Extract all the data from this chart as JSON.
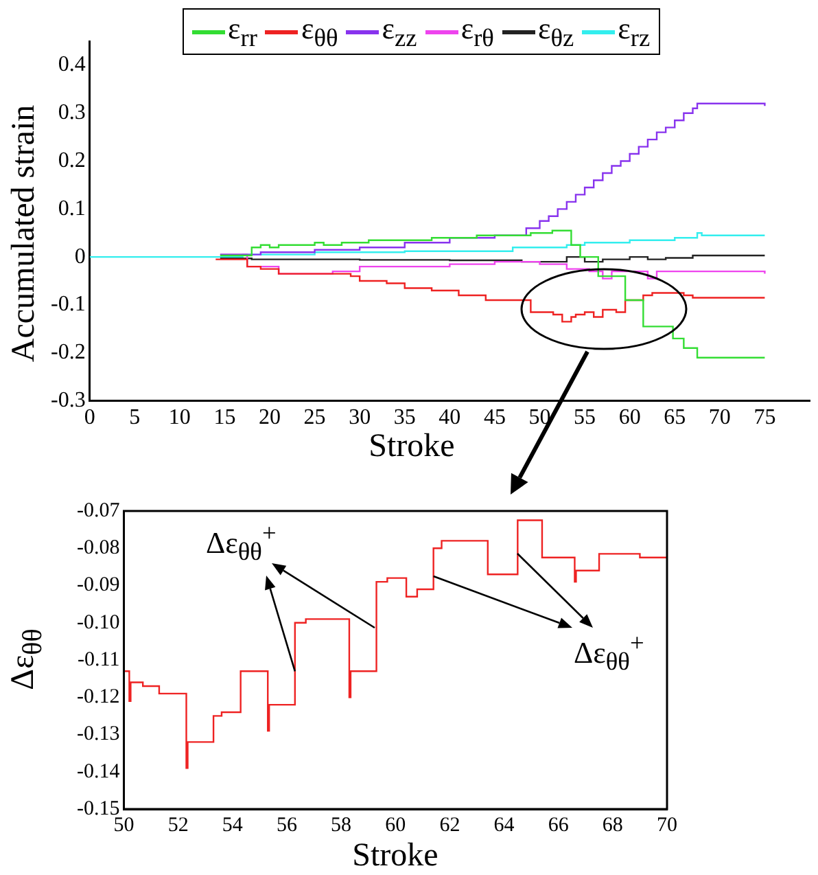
{
  "chart_data": [
    {
      "type": "step",
      "xlabel": "Stroke",
      "ylabel": "Accumulated strain",
      "xlim": [
        0,
        80
      ],
      "xticks": [
        0,
        5,
        10,
        15,
        20,
        25,
        30,
        35,
        40,
        45,
        50,
        55,
        60,
        65,
        70,
        75
      ],
      "ylim": [
        -0.3,
        0.45
      ],
      "yticks": [
        -0.3,
        -0.2,
        -0.1,
        0,
        0.1,
        0.2,
        0.3,
        0.4
      ],
      "legend": "top",
      "series": [
        {
          "name": "ε$_{rr}$",
          "color": "#33dd33",
          "x": [
            14.5,
            18,
            19,
            20,
            21,
            22,
            25,
            26,
            28,
            31,
            38,
            43,
            49,
            51.4,
            53.5,
            54.5,
            56.5,
            59.5,
            61.5,
            64.8,
            66,
            67.5,
            75
          ],
          "values": [
            0.003,
            0.02,
            0.025,
            0.02,
            0.025,
            0.025,
            0.03,
            0.025,
            0.03,
            0.035,
            0.04,
            0.045,
            0.05,
            0.055,
            0.025,
            0,
            -0.04,
            -0.09,
            -0.145,
            -0.17,
            -0.19,
            -0.21,
            -0.21
          ]
        },
        {
          "name": "ε$_{θθ}$",
          "color": "#ee2222",
          "x": [
            14,
            17.5,
            19,
            21,
            29,
            30,
            33,
            35,
            38,
            41,
            44,
            49,
            51.5,
            52.5,
            53.5,
            54,
            55,
            56,
            57,
            58.5,
            59.5,
            61.5,
            62.5,
            64.5,
            66,
            67,
            75
          ],
          "values": [
            -0.005,
            -0.02,
            -0.025,
            -0.035,
            -0.04,
            -0.05,
            -0.055,
            -0.065,
            -0.07,
            -0.08,
            -0.09,
            -0.115,
            -0.12,
            -0.135,
            -0.125,
            -0.12,
            -0.115,
            -0.125,
            -0.11,
            -0.115,
            -0.09,
            -0.08,
            -0.075,
            -0.075,
            -0.08,
            -0.085,
            -0.085
          ]
        },
        {
          "name": "ε$_{zz}$",
          "color": "#8833ee",
          "x": [
            14.5,
            19,
            25,
            30,
            35,
            40,
            45,
            48.5,
            50,
            51,
            52,
            53,
            54,
            55,
            56,
            57,
            58,
            59,
            60,
            61,
            62,
            63,
            64,
            65,
            66,
            67,
            67.5,
            75
          ],
          "values": [
            0.005,
            0.01,
            0.015,
            0.02,
            0.03,
            0.04,
            0.045,
            0.06,
            0.075,
            0.085,
            0.1,
            0.115,
            0.13,
            0.145,
            0.16,
            0.175,
            0.19,
            0.2,
            0.215,
            0.23,
            0.245,
            0.26,
            0.27,
            0.285,
            0.3,
            0.31,
            0.32,
            0.315
          ]
        },
        {
          "name": "ε$_{rθ}$",
          "color": "#ee44ee",
          "x": [
            14.5,
            17.5,
            21,
            27,
            30,
            40,
            45,
            50,
            53,
            55.5,
            57,
            58,
            62,
            63,
            75
          ],
          "values": [
            0.005,
            -0.02,
            -0.035,
            -0.03,
            -0.02,
            -0.015,
            -0.01,
            -0.015,
            -0.025,
            -0.03,
            -0.045,
            -0.03,
            -0.045,
            -0.03,
            -0.035
          ]
        },
        {
          "name": "ε$_{θz}$",
          "color": "#222222",
          "x": [
            14.5,
            18,
            30,
            40,
            48,
            53,
            55,
            57,
            60,
            62,
            64,
            67,
            75
          ],
          "values": [
            -0.003,
            -0.005,
            -0.006,
            -0.007,
            -0.01,
            0,
            -0.01,
            -0.005,
            0,
            -0.005,
            -0.002,
            0.003,
            0.003
          ]
        },
        {
          "name": "ε$_{rz}$",
          "color": "#33eeee",
          "x": [
            0,
            14,
            17,
            25,
            35,
            47,
            53,
            55,
            60,
            65,
            67.5,
            68,
            75
          ],
          "values": [
            0,
            0,
            0.005,
            0.01,
            0.012,
            0.02,
            0.025,
            0.03,
            0.035,
            0.04,
            0.05,
            0.045,
            0.045
          ]
        }
      ]
    },
    {
      "type": "step",
      "xlabel": "Stroke",
      "ylabel": "Δε$_{θθ}$",
      "xlim": [
        50,
        70
      ],
      "xticks": [
        50,
        52,
        54,
        56,
        58,
        60,
        62,
        64,
        66,
        68,
        70
      ],
      "ylim": [
        -0.15,
        -0.07
      ],
      "yticks": [
        -0.15,
        -0.14,
        -0.13,
        -0.12,
        -0.11,
        {
          "value": -0.1,
          "label": "-0.10"
        },
        -0.09,
        -0.08,
        -0.07
      ],
      "annotations": [
        {
          "text": "Δε$_{θθ}$$^{+}$",
          "x": 56.3,
          "y": -0.113
        },
        {
          "text": "Δε$_{θθ}$$^{+}$",
          "x": 61.4,
          "y": -0.0875
        }
      ],
      "series": [
        {
          "color": "#ee2222",
          "x": [
            50,
            50.2,
            50.25,
            50.7,
            51.3,
            52.3,
            52.35,
            52.4,
            53.3,
            53.6,
            54.3,
            55.3,
            55.35,
            55.4,
            56.3,
            56.7,
            58.3,
            58.35,
            58.4,
            59.3,
            59.7,
            60.4,
            60.8,
            61.4,
            61.7,
            63.4,
            64.5,
            65.4,
            66.6,
            66.65,
            66.75,
            67.5,
            69,
            70
          ],
          "values": [
            -0.113,
            -0.121,
            -0.116,
            -0.117,
            -0.119,
            -0.139,
            -0.132,
            -0.132,
            -0.125,
            -0.124,
            -0.113,
            -0.129,
            -0.122,
            -0.122,
            -0.1,
            -0.099,
            -0.12,
            -0.113,
            -0.113,
            -0.089,
            -0.088,
            -0.093,
            -0.091,
            -0.08,
            -0.078,
            -0.087,
            -0.0725,
            -0.0825,
            -0.089,
            -0.086,
            -0.086,
            -0.0815,
            -0.0825,
            -0.0825
          ]
        }
      ]
    }
  ]
}
